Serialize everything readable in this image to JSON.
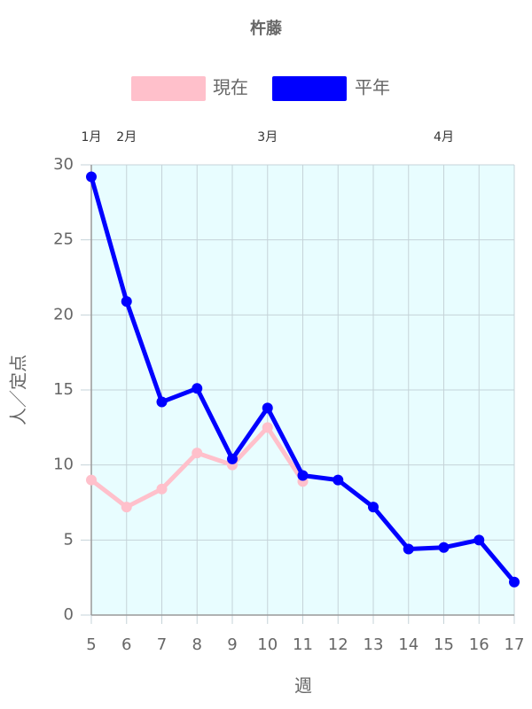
{
  "chart_data": {
    "type": "line",
    "title": "杵藤",
    "x": [
      5,
      6,
      7,
      8,
      9,
      10,
      11,
      12,
      13,
      14,
      15,
      16,
      17
    ],
    "series": [
      {
        "name": "現在",
        "color": "#ffc0cb",
        "values": [
          9.0,
          7.2,
          8.4,
          10.8,
          10.0,
          12.5,
          8.9,
          null,
          null,
          null,
          null,
          null,
          null
        ]
      },
      {
        "name": "平年",
        "color": "#0000ff",
        "values": [
          29.2,
          20.9,
          14.2,
          15.1,
          10.4,
          13.8,
          9.3,
          9.0,
          7.2,
          4.4,
          4.5,
          5.0,
          2.2
        ]
      }
    ],
    "xlim": [
      5,
      17
    ],
    "xticks": [
      5,
      6,
      7,
      8,
      9,
      10,
      11,
      12,
      13,
      14,
      15,
      16,
      17
    ],
    "ylim": [
      0,
      30
    ],
    "yticks": [
      0,
      5,
      10,
      15,
      20,
      25,
      30
    ],
    "x_label": "週",
    "y_label": "人／定点",
    "month_labels": [
      {
        "x": 5,
        "label": "1月"
      },
      {
        "x": 6,
        "label": "2月"
      },
      {
        "x": 10,
        "label": "3月"
      },
      {
        "x": 15,
        "label": "4月"
      }
    ],
    "grid": true,
    "legend": "top",
    "plot_background": "#e8fdff"
  }
}
